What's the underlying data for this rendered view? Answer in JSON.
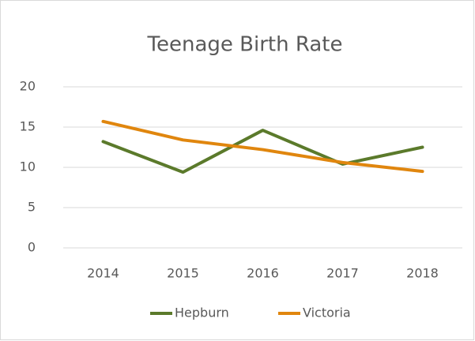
{
  "chart_data": {
    "type": "line",
    "title": "Teenage Birth Rate",
    "categories": [
      "2014",
      "2015",
      "2016",
      "2017",
      "2018"
    ],
    "series": [
      {
        "name": "Hepburn",
        "color": "#5b7a2b",
        "values": [
          13.2,
          9.4,
          14.6,
          10.4,
          12.5
        ]
      },
      {
        "name": "Victoria",
        "color": "#e0860e",
        "values": [
          15.7,
          13.4,
          12.2,
          10.6,
          9.5
        ]
      }
    ],
    "ylim": [
      0,
      20
    ],
    "yticks": [
      0,
      5,
      10,
      15,
      20
    ],
    "grid": true,
    "legend": "bottom"
  }
}
